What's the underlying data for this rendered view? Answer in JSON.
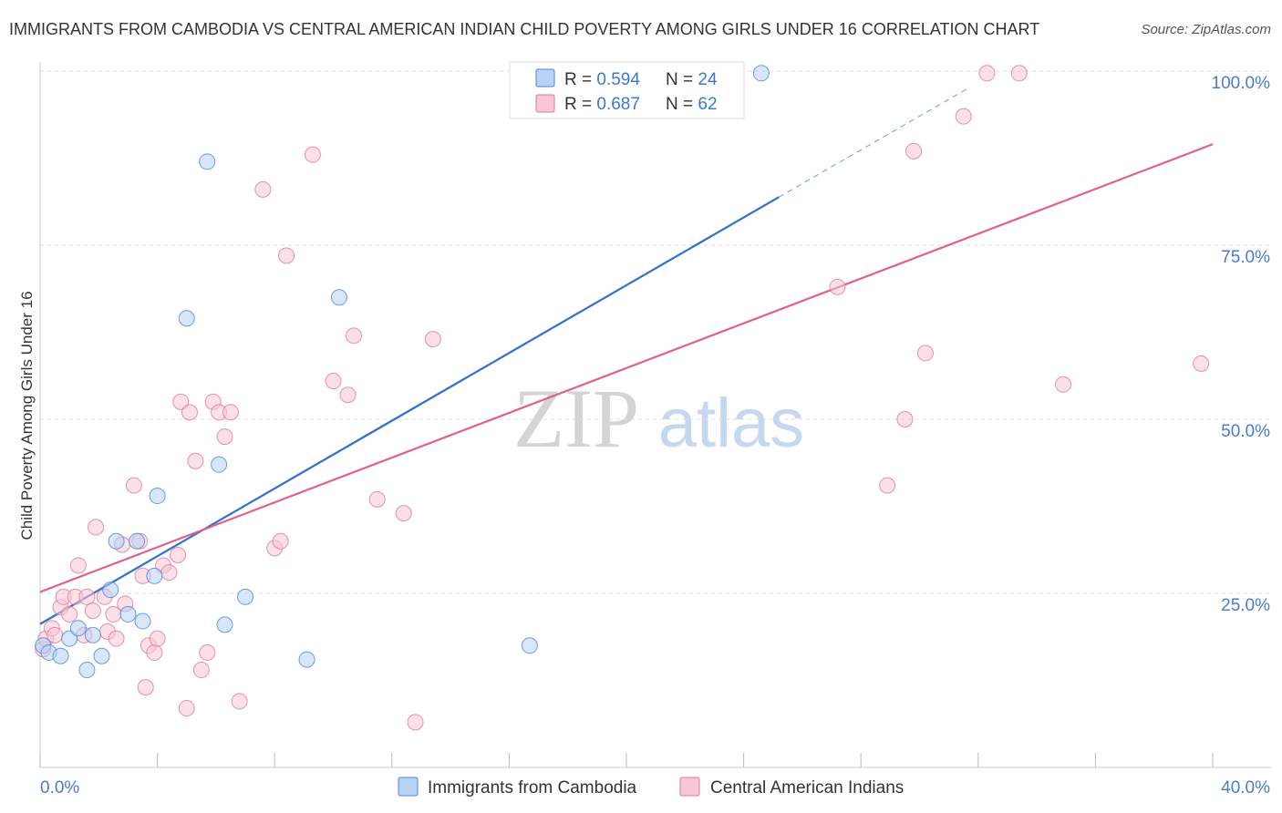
{
  "title": "IMMIGRANTS FROM CAMBODIA VS CENTRAL AMERICAN INDIAN CHILD POVERTY AMONG GIRLS UNDER 16 CORRELATION CHART",
  "source": "Source: ZipAtlas.com",
  "watermark": {
    "zip": "ZIP",
    "atlas": "atlas"
  },
  "colors": {
    "blue": "#4a86d8",
    "blue_fill": "#b8d2f4",
    "blue_line": "#2f6fd0",
    "pink": "#e07898",
    "pink_fill": "#f8c6d6",
    "pink_line": "#e0608a",
    "axis_value": "#4a7ccc",
    "grid": "#dddddd"
  },
  "legend": {
    "rows": [
      {
        "r_label": "R = ",
        "r_value": "0.594",
        "n_label": "N = ",
        "n_value": "24",
        "series": "blue"
      },
      {
        "r_label": "R = ",
        "r_value": "0.687",
        "n_label": "N = ",
        "n_value": "62",
        "series": "pink"
      }
    ]
  },
  "chart_data": {
    "type": "scatter",
    "title": "IMMIGRANTS FROM CAMBODIA VS CENTRAL AMERICAN INDIAN CHILD POVERTY AMONG GIRLS UNDER 16 CORRELATION CHART",
    "xlabel": "",
    "ylabel": "Child Poverty Among Girls Under 16",
    "xlim": [
      0,
      40
    ],
    "ylim": [
      0,
      100
    ],
    "x_tick_labels": [
      "0.0%",
      "40.0%"
    ],
    "y_ticks": [
      25,
      50,
      75,
      100
    ],
    "y_tick_labels": [
      "25.0%",
      "50.0%",
      "75.0%",
      "100.0%"
    ],
    "legend_position": "top-center",
    "series": [
      {
        "name": "Immigrants from Cambodia",
        "color_key": "blue",
        "trend": {
          "x0": 0,
          "y0": 20.6,
          "x1": 25.2,
          "y1": 81.9,
          "dash_to_x": 31.6,
          "dash_to_y": 97.4
        },
        "points": [
          [
            0.1,
            17.5
          ],
          [
            0.3,
            16.5
          ],
          [
            0.7,
            16
          ],
          [
            1.0,
            18.5
          ],
          [
            1.3,
            20
          ],
          [
            1.6,
            14
          ],
          [
            1.8,
            19
          ],
          [
            2.1,
            16
          ],
          [
            2.4,
            25.5
          ],
          [
            2.6,
            32.5
          ],
          [
            3.0,
            22
          ],
          [
            3.3,
            32.5
          ],
          [
            3.5,
            21
          ],
          [
            3.9,
            27.5
          ],
          [
            4.0,
            39
          ],
          [
            5.0,
            64.5
          ],
          [
            5.7,
            87
          ],
          [
            6.1,
            43.5
          ],
          [
            6.3,
            20.5
          ],
          [
            7.0,
            24.5
          ],
          [
            9.1,
            15.5
          ],
          [
            10.2,
            67.5
          ],
          [
            16.7,
            17.5
          ],
          [
            24.6,
            99.7
          ]
        ]
      },
      {
        "name": "Central American Indians",
        "color_key": "pink",
        "trend": {
          "x0": 0,
          "y0": 25.2,
          "x1": 40,
          "y1": 89.5
        },
        "points": [
          [
            0.1,
            17
          ],
          [
            0.2,
            18.5
          ],
          [
            0.4,
            20
          ],
          [
            0.5,
            19
          ],
          [
            0.7,
            23
          ],
          [
            0.8,
            24.5
          ],
          [
            1.0,
            22
          ],
          [
            1.2,
            24.5
          ],
          [
            1.3,
            29
          ],
          [
            1.5,
            19
          ],
          [
            1.6,
            24.5
          ],
          [
            1.8,
            22.5
          ],
          [
            1.9,
            34.5
          ],
          [
            2.2,
            24.5
          ],
          [
            2.3,
            19.5
          ],
          [
            2.5,
            22
          ],
          [
            2.6,
            18.5
          ],
          [
            2.8,
            32
          ],
          [
            2.9,
            23.5
          ],
          [
            3.2,
            40.5
          ],
          [
            3.4,
            32.5
          ],
          [
            3.5,
            27.5
          ],
          [
            3.6,
            11.5
          ],
          [
            3.7,
            17.5
          ],
          [
            3.9,
            16.5
          ],
          [
            4.0,
            18.5
          ],
          [
            4.2,
            29
          ],
          [
            4.4,
            28
          ],
          [
            4.7,
            30.5
          ],
          [
            4.8,
            52.5
          ],
          [
            5.0,
            8.5
          ],
          [
            5.1,
            51
          ],
          [
            5.3,
            44
          ],
          [
            5.5,
            14
          ],
          [
            5.7,
            16.5
          ],
          [
            5.9,
            52.5
          ],
          [
            6.1,
            51
          ],
          [
            6.3,
            47.5
          ],
          [
            6.5,
            51
          ],
          [
            6.8,
            9.5
          ],
          [
            7.6,
            83
          ],
          [
            8.0,
            31.5
          ],
          [
            8.2,
            32.5
          ],
          [
            8.4,
            73.5
          ],
          [
            9.3,
            88
          ],
          [
            10.0,
            55.5
          ],
          [
            10.5,
            53.5
          ],
          [
            10.7,
            62
          ],
          [
            11.5,
            38.5
          ],
          [
            12.4,
            36.5
          ],
          [
            12.8,
            6.5
          ],
          [
            13.4,
            61.5
          ],
          [
            27.2,
            69
          ],
          [
            28.9,
            40.5
          ],
          [
            29.5,
            50
          ],
          [
            29.8,
            88.5
          ],
          [
            30.2,
            59.5
          ],
          [
            31.5,
            93.5
          ],
          [
            32.3,
            99.7
          ],
          [
            33.4,
            99.7
          ],
          [
            34.9,
            55
          ],
          [
            39.6,
            58
          ]
        ]
      }
    ]
  }
}
